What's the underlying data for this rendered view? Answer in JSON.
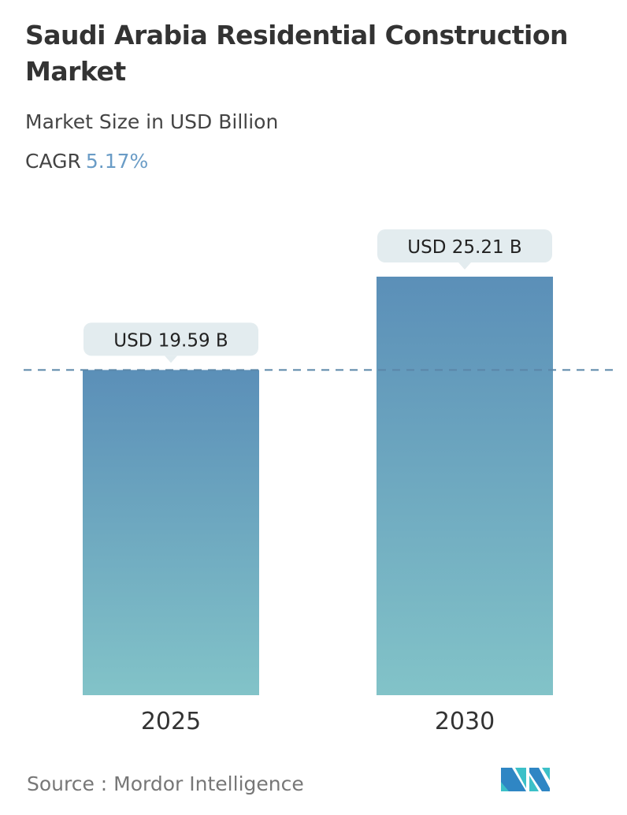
{
  "header": {
    "title": "Saudi Arabia Residential Construction Market",
    "subtitle": "Market Size in USD Billion",
    "cagr_label": "CAGR",
    "cagr_value": "5.17%"
  },
  "chart_data": {
    "type": "bar",
    "categories": [
      "2025",
      "2030"
    ],
    "values": [
      19.59,
      25.21
    ],
    "data_labels": [
      "USD 19.59 B",
      "USD 25.21 B"
    ],
    "ylim": [
      0,
      25.21
    ],
    "reference_line": 19.59,
    "colors": {
      "bar_top": "#5b8fb8",
      "bar_bottom": "#82c3c8",
      "label_bg": "#e3ecef",
      "dashed": "#5b86a8"
    }
  },
  "footer": {
    "source": "Source :  Mordor Intelligence",
    "logo": "Mordor Intelligence"
  }
}
